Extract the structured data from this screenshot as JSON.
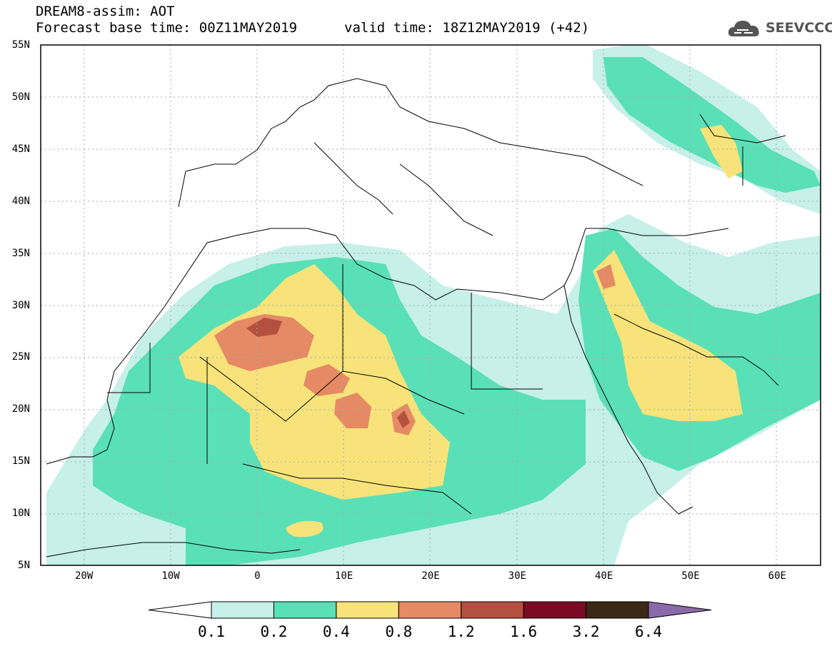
{
  "header": {
    "line1": "DREAM8-assim: AOT",
    "line2": "Forecast base time: 00Z11MAY2019",
    "line3": "valid time: 18Z12MAY2019 (+42)"
  },
  "logo": {
    "text": "SEEVCCC",
    "icon": "cloud-icon"
  },
  "axes": {
    "lat_labels": [
      "55N",
      "50N",
      "45N",
      "40N",
      "35N",
      "30N",
      "25N",
      "20N",
      "15N",
      "10N",
      "5N"
    ],
    "lon_labels": [
      "20W",
      "10W",
      "0",
      "10E",
      "20E",
      "30E",
      "40E",
      "50E",
      "60E"
    ],
    "lat_range": [
      5,
      55
    ],
    "lon_range": [
      -25,
      65
    ]
  },
  "colorbar": {
    "labels": [
      "0.1",
      "0.2",
      "0.4",
      "0.8",
      "1.2",
      "1.6",
      "3.2",
      "6.4"
    ],
    "colors": [
      "#ffffff",
      "#c6f0e8",
      "#5ae0b6",
      "#f7e37a",
      "#e58a64",
      "#b4503f",
      "#7a0b24",
      "#3d2817",
      "#8a6aa8"
    ]
  }
}
